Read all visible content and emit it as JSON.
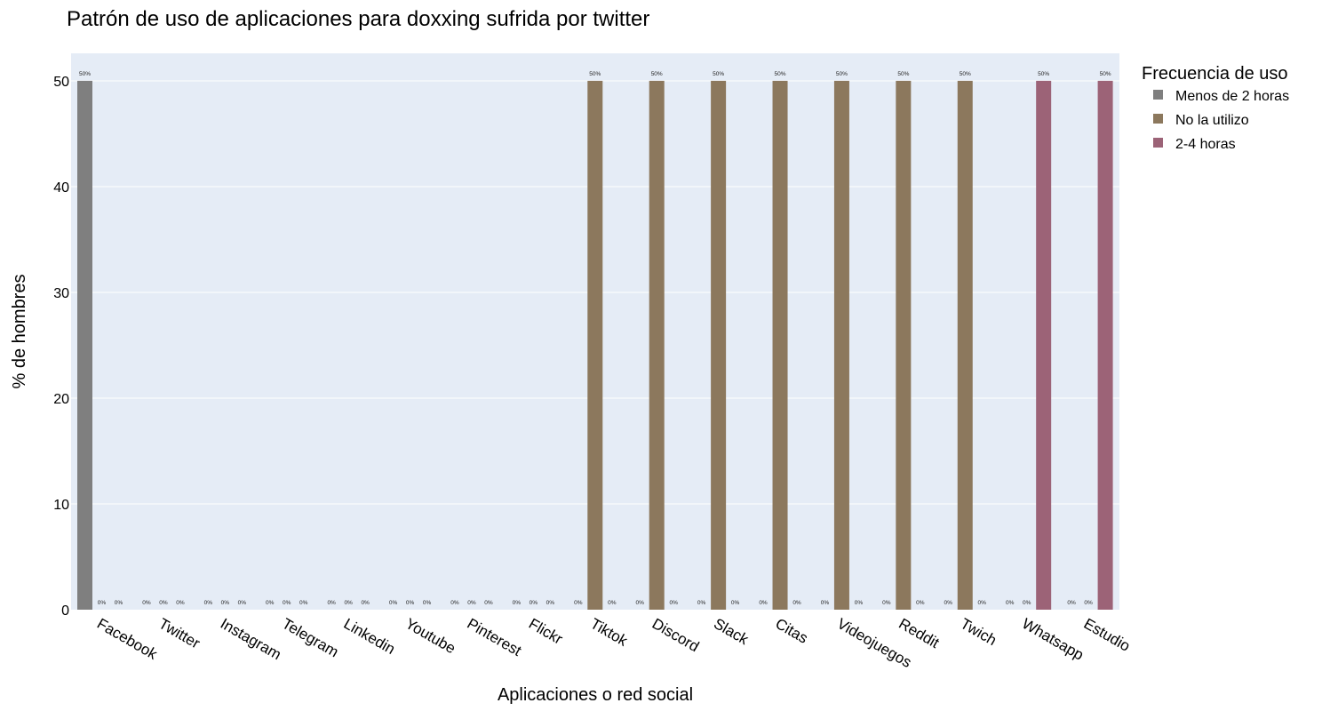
{
  "chart_data": {
    "type": "bar",
    "title": "Patrón de uso de aplicaciones para doxxing sufrida por twitter",
    "xlabel": "Aplicaciones o red social",
    "ylabel": "% de hombres",
    "ylim": [
      0,
      52.6
    ],
    "yticks": [
      "0",
      "10",
      "20",
      "30",
      "40",
      "50"
    ],
    "ytick_values": [
      0,
      10,
      20,
      30,
      40,
      50
    ],
    "grid": true,
    "background": "#E5ECF6",
    "legend": {
      "title": "Frecuencia de uso",
      "placement": "top-right"
    },
    "categories": [
      "Facebook",
      "Twitter",
      "Instagram",
      "Telegram",
      "Linkedin",
      "Youtube",
      "Pinterest",
      "Flickr",
      "Tiktok",
      "Discord",
      "Slack",
      "Citas",
      "Videojuegos",
      "Reddit",
      "Twich",
      "Whatsapp",
      "Estudio"
    ],
    "series": [
      {
        "name": "Menos de 2 horas",
        "color": "#7F7F7F",
        "values": [
          50,
          0,
          0,
          0,
          0,
          0,
          0,
          0,
          0,
          0,
          0,
          0,
          0,
          0,
          0,
          0,
          0
        ],
        "labels": [
          "50%",
          "0%",
          "0%",
          "0%",
          "0%",
          "0%",
          "0%",
          "0%",
          "0%",
          "0%",
          "0%",
          "0%",
          "0%",
          "0%",
          "0%",
          "0%",
          "0%"
        ]
      },
      {
        "name": "No la utilizo",
        "color": "#8C785D",
        "values": [
          0,
          0,
          0,
          0,
          0,
          0,
          0,
          0,
          50,
          50,
          50,
          50,
          50,
          50,
          50,
          0,
          0
        ],
        "labels": [
          "0%",
          "0%",
          "0%",
          "0%",
          "0%",
          "0%",
          "0%",
          "0%",
          "50%",
          "50%",
          "50%",
          "50%",
          "50%",
          "50%",
          "50%",
          "0%",
          "0%"
        ]
      },
      {
        "name": "2-4 horas",
        "color": "#9C6377",
        "values": [
          0,
          0,
          0,
          0,
          0,
          0,
          0,
          0,
          0,
          0,
          0,
          0,
          0,
          0,
          0,
          50,
          50
        ],
        "labels": [
          "0%",
          "0%",
          "0%",
          "0%",
          "0%",
          "0%",
          "0%",
          "0%",
          "0%",
          "0%",
          "0%",
          "0%",
          "0%",
          "0%",
          "0%",
          "50%",
          "50%"
        ]
      }
    ]
  }
}
